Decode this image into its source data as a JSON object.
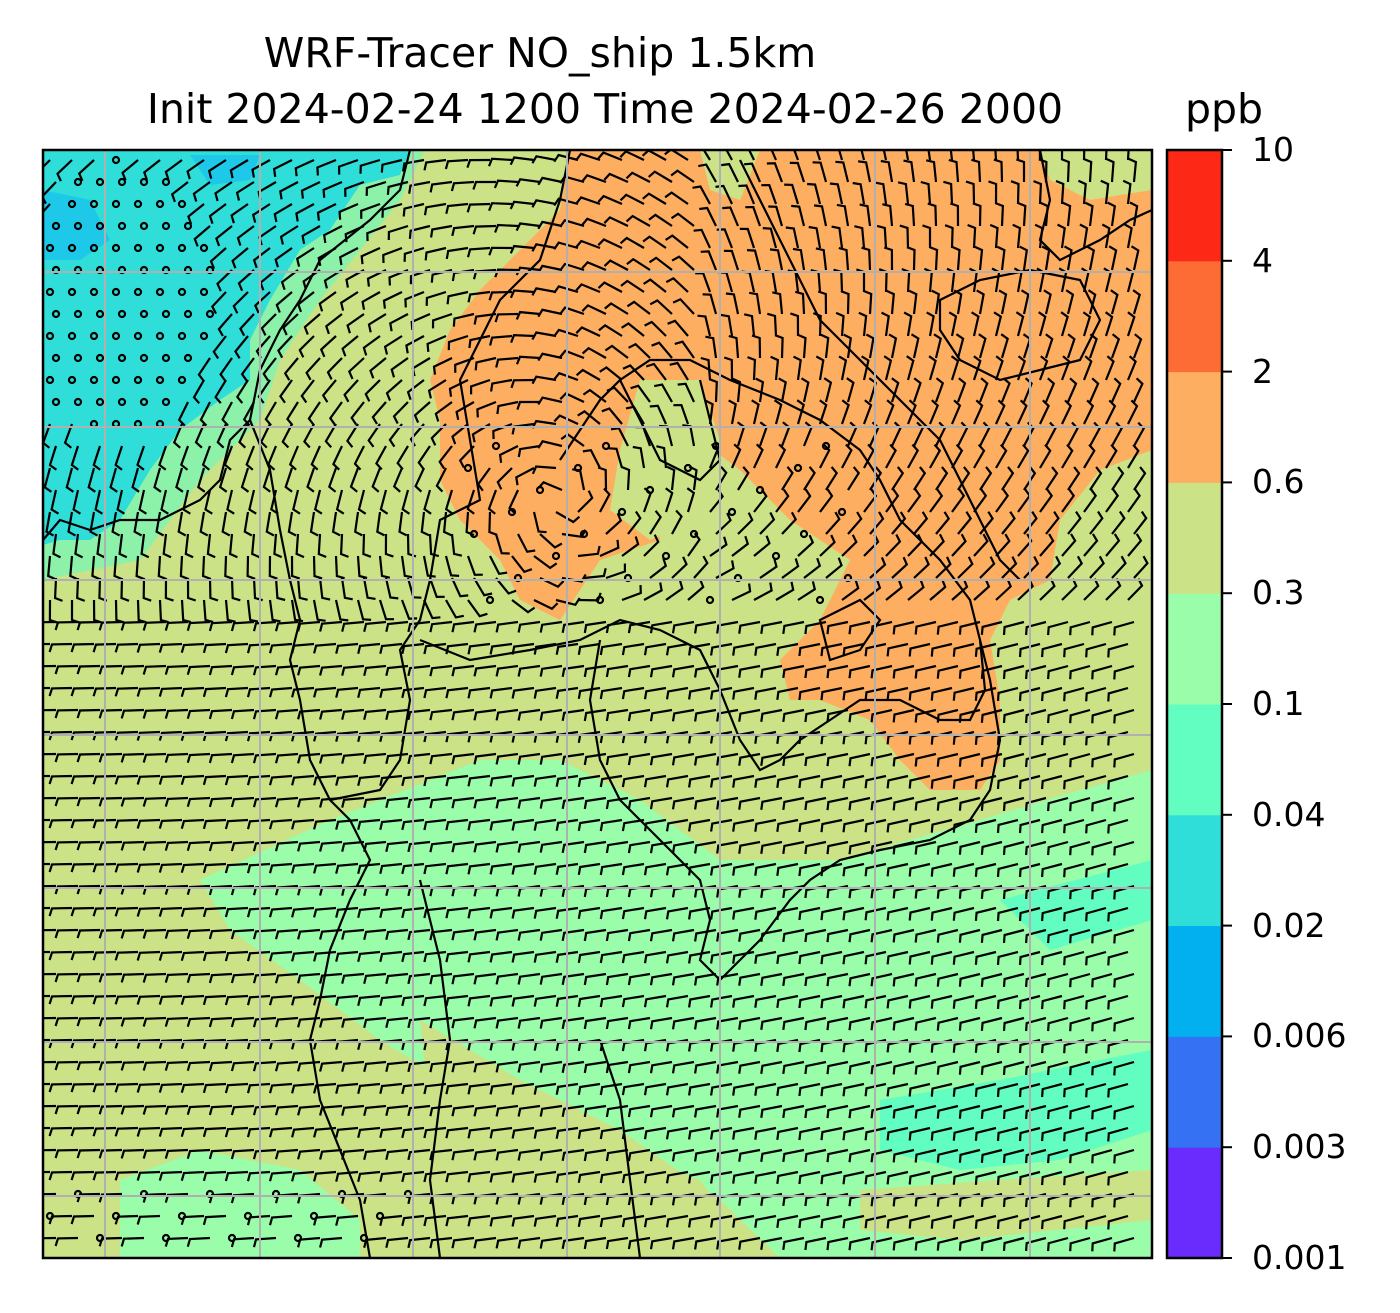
{
  "title_line1": "WRF-Tracer NO_ship 1.5km",
  "title_line2": "Init 2024-02-24 1200 Time 2024-02-26 2000",
  "units": "ppb",
  "colorbar": {
    "levels": [
      "0.001",
      "0.003",
      "0.006",
      "0.02",
      "0.04",
      "0.1",
      "0.3",
      "0.6",
      "2",
      "4",
      "10"
    ],
    "colors": [
      "#6a2cfd",
      "#3472f3",
      "#02b0ef",
      "#2fded8",
      "#62fdc0",
      "#99fda9",
      "#cbe287",
      "#fdae60",
      "#fd6c35",
      "#fd2815"
    ]
  },
  "map": {
    "background_color": "#cbe287",
    "gridline_color": "#b0b0b0",
    "coastline_color": "#000000",
    "barb_color": "#000000",
    "description_fields": [
      "filled tracer concentration",
      "wind barbs",
      "coastlines",
      "lat/lon gridlines"
    ]
  }
}
